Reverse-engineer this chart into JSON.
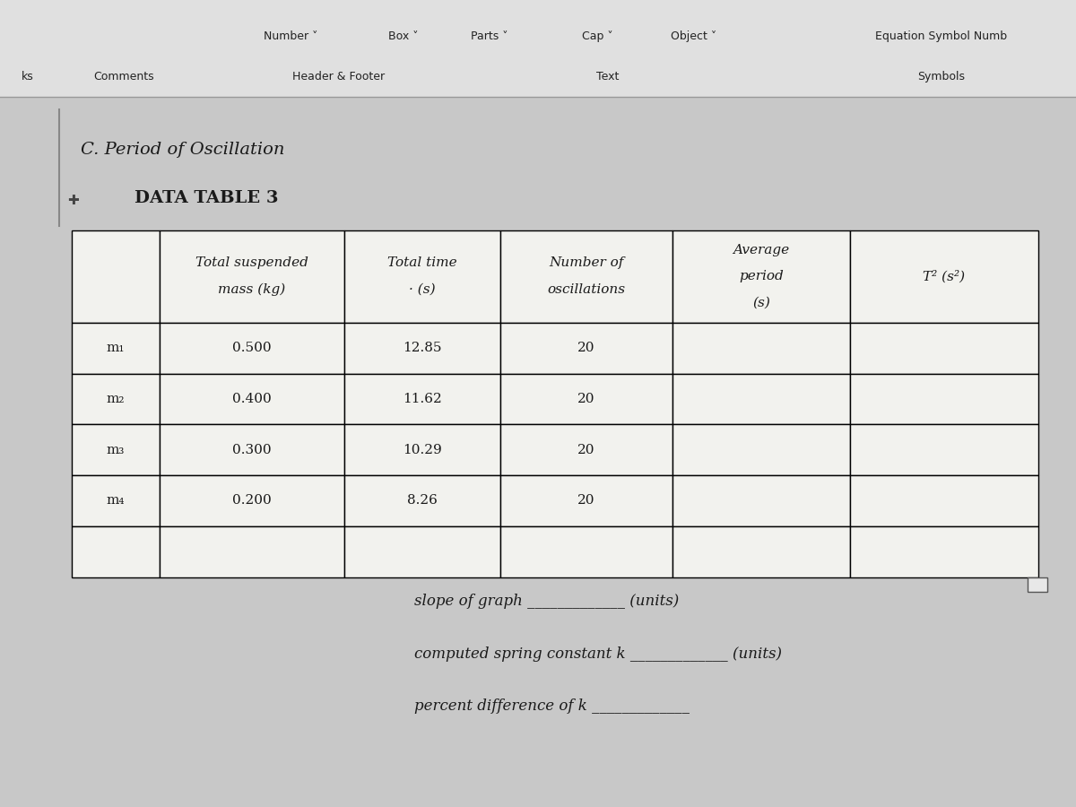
{
  "bg_color": "#c8c8c8",
  "toolbar_bg": "#e0e0e0",
  "section_title": "C. Period of Oscillation",
  "table_title": "DATA TABLE 3",
  "col_headers": [
    "Total suspended\nmass (kg)",
    "Total time\n· (s)",
    "Number of\noscillations",
    "Average\nperiod\n(s)",
    "T² (s²)"
  ],
  "row_labels": [
    "m₁",
    "m₂",
    "m₃",
    "m₄",
    ""
  ],
  "col1_vals": [
    "0.500",
    "0.400",
    "0.300",
    "0.200",
    ""
  ],
  "col2_vals": [
    "12.85",
    "11.62",
    "10.29",
    "8.26",
    ""
  ],
  "col3_vals": [
    "20",
    "20",
    "20",
    "20",
    ""
  ],
  "col4_vals": [
    "",
    "",
    "",
    "",
    ""
  ],
  "col5_vals": [
    "",
    "",
    "",
    "",
    ""
  ],
  "table_border_color": "#000000",
  "table_cell_bg": "#f2f2ee",
  "text_color": "#1a1a1a",
  "header_font_size": 11,
  "body_font_size": 11,
  "title_font_size": 14,
  "footer_font_size": 12
}
